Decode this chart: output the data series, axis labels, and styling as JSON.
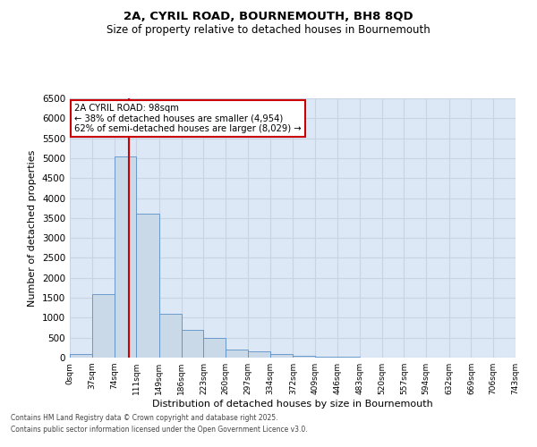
{
  "title1": "2A, CYRIL ROAD, BOURNEMOUTH, BH8 8QD",
  "title2": "Size of property relative to detached houses in Bournemouth",
  "xlabel": "Distribution of detached houses by size in Bournemouth",
  "ylabel": "Number of detached properties",
  "annotation_line1": "2A CYRIL ROAD: 98sqm",
  "annotation_line2": "← 38% of detached houses are smaller (4,954)",
  "annotation_line3": "62% of semi-detached houses are larger (8,029) →",
  "property_size": 98,
  "bin_edges": [
    0,
    37,
    74,
    111,
    149,
    186,
    223,
    260,
    297,
    334,
    372,
    409,
    446,
    483,
    520,
    557,
    594,
    632,
    669,
    706,
    743
  ],
  "bin_labels": [
    "0sqm",
    "37sqm",
    "74sqm",
    "111sqm",
    "149sqm",
    "186sqm",
    "223sqm",
    "260sqm",
    "297sqm",
    "334sqm",
    "372sqm",
    "409sqm",
    "446sqm",
    "483sqm",
    "520sqm",
    "557sqm",
    "594sqm",
    "632sqm",
    "669sqm",
    "706sqm",
    "743sqm"
  ],
  "bar_heights": [
    100,
    1600,
    5050,
    3600,
    1100,
    700,
    500,
    200,
    150,
    100,
    50,
    30,
    15,
    5,
    3,
    2,
    1,
    1,
    0,
    0
  ],
  "bar_color": "#c9d9e8",
  "bar_edge_color": "#5b8fc7",
  "grid_color": "#c8d4e3",
  "background_color": "#dce8f5",
  "red_line_color": "#cc0000",
  "annotation_box_color": "#cc0000",
  "ylim": [
    0,
    6500
  ],
  "yticks": [
    0,
    500,
    1000,
    1500,
    2000,
    2500,
    3000,
    3500,
    4000,
    4500,
    5000,
    5500,
    6000,
    6500
  ],
  "footer_line1": "Contains HM Land Registry data © Crown copyright and database right 2025.",
  "footer_line2": "Contains public sector information licensed under the Open Government Licence v3.0."
}
